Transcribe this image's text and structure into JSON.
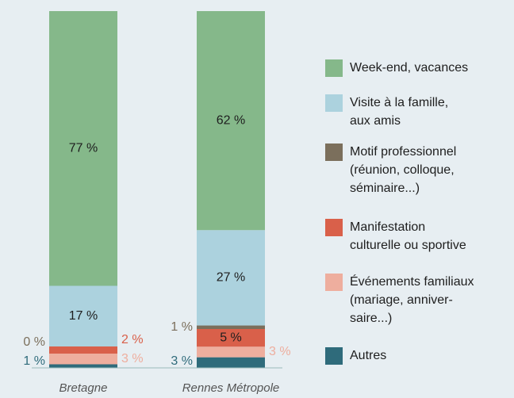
{
  "chart_data": {
    "type": "stacked-bar",
    "categories": [
      "Bretagne",
      "Rennes Métropole"
    ],
    "series": [
      {
        "name": "Autres",
        "color": "#2f6b7b",
        "values": [
          1,
          3
        ],
        "value_labels": [
          "1 %",
          "3 %"
        ]
      },
      {
        "name": "Événements familiaux\n(mariage, anniver-\nsaire...)",
        "color": "#eeae9e",
        "values": [
          3,
          3
        ],
        "value_labels": [
          "3 %",
          "3 %"
        ]
      },
      {
        "name": "Manifestation\nculturelle ou sportive",
        "color": "#d9604a",
        "values": [
          2,
          5
        ],
        "value_labels": [
          "2 %",
          "5 %"
        ]
      },
      {
        "name": "Motif professionnel\n(réunion, colloque,\nséminaire...)",
        "color": "#7b6f5c",
        "values": [
          0,
          1
        ],
        "value_labels": [
          "0 %",
          "1 %"
        ]
      },
      {
        "name": "Visite à la famille,\naux amis",
        "color": "#acd2de",
        "values": [
          17,
          27
        ],
        "value_labels": [
          "17 %",
          "27 %"
        ]
      },
      {
        "name": "Week-end, vacances",
        "color": "#85b88a",
        "values": [
          77,
          62
        ],
        "value_labels": [
          "77 %",
          "62 %"
        ]
      }
    ]
  }
}
